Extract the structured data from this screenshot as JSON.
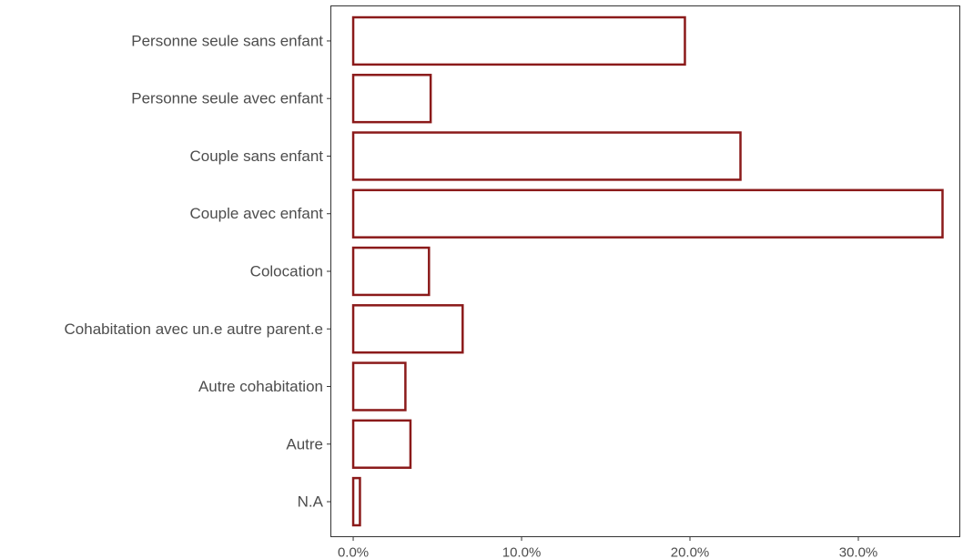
{
  "chart_data": {
    "type": "bar",
    "orientation": "horizontal",
    "categories": [
      "Personne seule sans enfant",
      "Personne seule avec enfant",
      "Couple sans enfant",
      "Couple avec enfant",
      "Colocation",
      "Cohabitation avec un.e autre parent.e",
      "Autre cohabitation",
      "Autre",
      "N.A"
    ],
    "values": [
      19.7,
      4.6,
      23.0,
      35.0,
      4.5,
      6.5,
      3.1,
      3.4,
      0.4
    ],
    "x_ticks": [
      0,
      10,
      20,
      30
    ],
    "x_tick_labels": [
      "0.0%",
      "10.0%",
      "20.0%",
      "30.0%"
    ],
    "xlim": [
      -1.3,
      36.0
    ],
    "title": "",
    "xlabel": "",
    "ylabel": "",
    "grid": false,
    "bar_fill": "#ffffff",
    "bar_outline_color": "#8b1a1a",
    "axis_color": "#333333",
    "text_color": "#4d4d4d"
  }
}
